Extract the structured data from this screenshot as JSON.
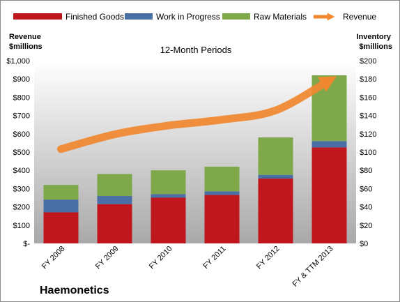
{
  "chart_data": {
    "type": "bar",
    "subtitle": "12-Month Periods",
    "company": "Haemonetics",
    "left_axis_title": [
      "Revenue",
      "$millions"
    ],
    "right_axis_title": [
      "Inventory",
      "$millions"
    ],
    "categories": [
      "FY 2008",
      "FY 2009",
      "FY 2010",
      "FY 2011",
      "FY 2012",
      "FY & TTM 2013"
    ],
    "left_ticks": [
      "$-",
      "$100",
      "$200",
      "$300",
      "$400",
      "$500",
      "$600",
      "$700",
      "$800",
      "$900",
      "$1,000"
    ],
    "right_ticks": [
      "$0",
      "$20",
      "$40",
      "$60",
      "$80",
      "$100",
      "$120",
      "$140",
      "$160",
      "$180",
      "$200"
    ],
    "ylim_left": [
      0,
      1000
    ],
    "ylim_right": [
      0,
      200
    ],
    "stacked_series": [
      {
        "name": "Finished Goods",
        "axis": "right",
        "color": "#c0161d",
        "values": [
          34,
          43,
          50,
          53,
          71,
          105
        ]
      },
      {
        "name": "Work in Progress",
        "axis": "right",
        "color": "#4a6fa5",
        "values": [
          14,
          9,
          4,
          4,
          4,
          7
        ]
      },
      {
        "name": "Raw Materials",
        "axis": "right",
        "color": "#7ea84a",
        "values": [
          16,
          24,
          26,
          27,
          41,
          72
        ]
      }
    ],
    "line_series": {
      "name": "Revenue",
      "axis": "left",
      "color": "#f0882f",
      "values": [
        516,
        597,
        645,
        677,
        728,
        892
      ]
    }
  }
}
